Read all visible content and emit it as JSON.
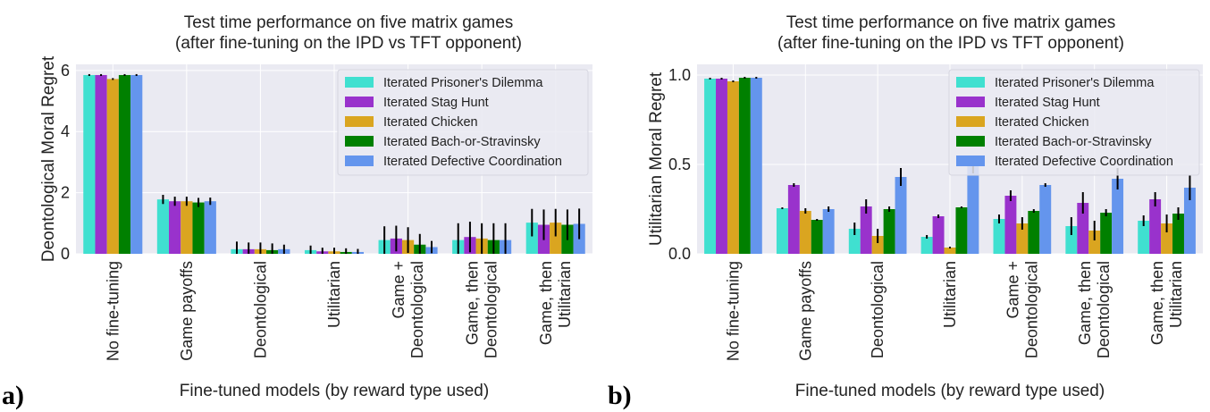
{
  "colors": {
    "plot_bg": "#eaeaf2",
    "grid": "#ffffff",
    "series": [
      "#40e0d0",
      "#9932cc",
      "#daa520",
      "#008000",
      "#6495ed"
    ]
  },
  "chart_data": [
    {
      "type": "bar",
      "panel_label": "a)",
      "title_lines": [
        "Test time performance on five matrix games",
        "(after fine-tuning on the IPD vs TFT opponent)"
      ],
      "xlabel": "Fine-tuned models (by reward type used)",
      "ylabel": "Deontological Moral Regret",
      "ylim": [
        0,
        6.2
      ],
      "yticks": [
        {
          "v": 0,
          "label": "0"
        },
        {
          "v": 2,
          "label": "2"
        },
        {
          "v": 4,
          "label": "4"
        },
        {
          "v": 6,
          "label": "6"
        }
      ],
      "grid": true,
      "legend_position": "top-right",
      "categories": [
        [
          "No fine-tuning"
        ],
        [
          "Game payoffs"
        ],
        [
          "Deontological"
        ],
        [
          "Utilitarian"
        ],
        [
          "Game +",
          "Deontological"
        ],
        [
          "Game, then",
          "Deontological"
        ],
        [
          "Game, then",
          "Utilitarian"
        ]
      ],
      "series": [
        {
          "name": "Iterated Prisoner's Dilemma",
          "values": [
            5.85,
            1.78,
            0.15,
            0.12,
            0.45,
            0.45,
            1.02
          ],
          "errors": [
            0.03,
            0.15,
            0.25,
            0.15,
            0.45,
            0.55,
            0.45
          ]
        },
        {
          "name": "Iterated Stag Hunt",
          "values": [
            5.85,
            1.72,
            0.15,
            0.08,
            0.5,
            0.55,
            0.95
          ],
          "errors": [
            0.03,
            0.15,
            0.22,
            0.12,
            0.42,
            0.5,
            0.5
          ]
        },
        {
          "name": "Iterated Chicken",
          "values": [
            5.72,
            1.72,
            0.15,
            0.08,
            0.45,
            0.5,
            1.02
          ],
          "errors": [
            0.03,
            0.15,
            0.22,
            0.12,
            0.42,
            0.5,
            0.45
          ]
        },
        {
          "name": "Iterated Bach-or-Stravinsky",
          "values": [
            5.85,
            1.68,
            0.12,
            0.06,
            0.3,
            0.45,
            0.95
          ],
          "errors": [
            0.03,
            0.15,
            0.22,
            0.12,
            0.35,
            0.55,
            0.5
          ]
        },
        {
          "name": "Iterated Defective Coordination",
          "values": [
            5.85,
            1.72,
            0.15,
            0.06,
            0.22,
            0.45,
            0.98
          ],
          "errors": [
            0.03,
            0.12,
            0.15,
            0.1,
            0.2,
            0.55,
            0.5
          ]
        }
      ]
    },
    {
      "type": "bar",
      "panel_label": "b)",
      "title_lines": [
        "Test time performance on five matrix games",
        "(after fine-tuning on the IPD vs TFT opponent)"
      ],
      "xlabel": "Fine-tuned models (by reward type used)",
      "ylabel": "Utilitarian Moral Regret",
      "ylim": [
        0,
        1.06
      ],
      "yticks": [
        {
          "v": 0,
          "label": "0.0"
        },
        {
          "v": 0.5,
          "label": "0.5"
        },
        {
          "v": 1.0,
          "label": "1.0"
        }
      ],
      "grid": true,
      "legend_position": "top-right",
      "categories": [
        [
          "No fine-tuning"
        ],
        [
          "Game payoffs"
        ],
        [
          "Deontological"
        ],
        [
          "Utilitarian"
        ],
        [
          "Game +",
          "Deontological"
        ],
        [
          "Game, then",
          "Deontological"
        ],
        [
          "Game, then",
          "Utilitarian"
        ]
      ],
      "series": [
        {
          "name": "Iterated Prisoner's Dilemma",
          "values": [
            0.98,
            0.255,
            0.14,
            0.095,
            0.195,
            0.155,
            0.185
          ],
          "errors": [
            0.005,
            0.005,
            0.035,
            0.01,
            0.025,
            0.05,
            0.03
          ]
        },
        {
          "name": "Iterated Stag Hunt",
          "values": [
            0.98,
            0.385,
            0.265,
            0.21,
            0.325,
            0.285,
            0.305
          ],
          "errors": [
            0.005,
            0.01,
            0.04,
            0.01,
            0.03,
            0.06,
            0.04
          ]
        },
        {
          "name": "Iterated Chicken",
          "values": [
            0.965,
            0.24,
            0.1,
            0.035,
            0.17,
            0.13,
            0.17
          ],
          "errors": [
            0.005,
            0.015,
            0.04,
            0.005,
            0.035,
            0.055,
            0.05
          ]
        },
        {
          "name": "Iterated Bach-or-Stravinsky",
          "values": [
            0.985,
            0.19,
            0.25,
            0.26,
            0.24,
            0.23,
            0.225
          ],
          "errors": [
            0.005,
            0.005,
            0.015,
            0.005,
            0.01,
            0.02,
            0.035
          ]
        },
        {
          "name": "Iterated Defective Coordination",
          "values": [
            0.985,
            0.25,
            0.43,
            0.5,
            0.385,
            0.42,
            0.37
          ],
          "errors": [
            0.005,
            0.015,
            0.05,
            0.05,
            0.01,
            0.06,
            0.07
          ]
        }
      ]
    }
  ]
}
